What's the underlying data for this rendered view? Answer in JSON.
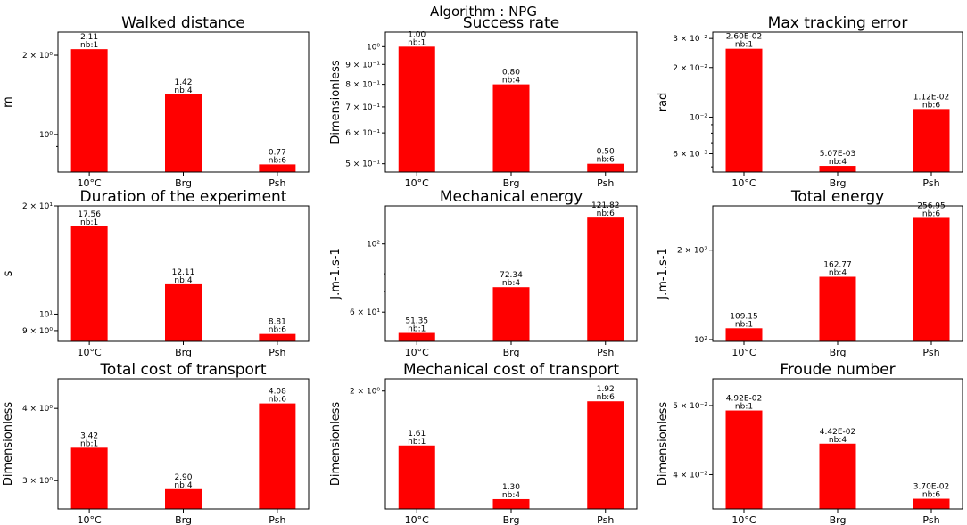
{
  "figure_title": "Algorithm : NPG",
  "colors": {
    "bar": "#ff0000",
    "axis": "#000000",
    "background": "#ffffff"
  },
  "chart_data": [
    {
      "type": "bar",
      "title": "Walked distance",
      "ylabel": "m",
      "yscale": "log",
      "categories": [
        "10°C",
        "Brg",
        "Psh"
      ],
      "values": [
        2.11,
        1.42,
        0.77
      ],
      "value_labels": [
        "2.11",
        "1.42",
        "0.77"
      ],
      "count_labels": [
        "nb:1",
        "nb:4",
        "nb:6"
      ],
      "ylim": [
        0.72,
        2.45
      ],
      "yticks": [
        {
          "value": 2,
          "label": "2 × 10⁰"
        },
        {
          "value": 1,
          "label": "10⁰"
        }
      ],
      "minor_ticks": [
        3,
        0.9,
        0.8,
        0.7
      ]
    },
    {
      "type": "bar",
      "title": "Success rate",
      "ylabel": "Dimensionless",
      "yscale": "log",
      "categories": [
        "10°C",
        "Brg",
        "Psh"
      ],
      "values": [
        1.0,
        0.8,
        0.5
      ],
      "value_labels": [
        "1.00",
        "0.80",
        "0.50"
      ],
      "count_labels": [
        "nb:1",
        "nb:4",
        "nb:6"
      ],
      "ylim": [
        0.476,
        1.09
      ],
      "yticks": [
        {
          "value": 1.0,
          "label": "10⁰"
        },
        {
          "value": 0.9,
          "label": "9 × 10⁻¹"
        },
        {
          "value": 0.8,
          "label": "8 × 10⁻¹"
        },
        {
          "value": 0.7,
          "label": "7 × 10⁻¹"
        },
        {
          "value": 0.6,
          "label": "6 × 10⁻¹"
        },
        {
          "value": 0.5,
          "label": "5 × 10⁻¹"
        }
      ],
      "minor_ticks": []
    },
    {
      "type": "bar",
      "title": "Max tracking error",
      "ylabel": "rad",
      "yscale": "log",
      "categories": [
        "10°C",
        "Brg",
        "Psh"
      ],
      "values": [
        0.026,
        0.00507,
        0.0112
      ],
      "value_labels": [
        "2.60E-02",
        "5.07E-03",
        "1.12E-02"
      ],
      "count_labels": [
        "nb:1",
        "nb:4",
        "nb:6"
      ],
      "ylim": [
        0.00465,
        0.0328
      ],
      "yticks": [
        {
          "value": 0.03,
          "label": "3 × 10⁻²"
        },
        {
          "value": 0.02,
          "label": "2 × 10⁻²"
        },
        {
          "value": 0.01,
          "label": "10⁻²"
        },
        {
          "value": 0.006,
          "label": "6 × 10⁻³"
        }
      ],
      "minor_ticks": [
        0.009,
        0.008,
        0.007,
        0.005
      ]
    },
    {
      "type": "bar",
      "title": "Duration of the experiment",
      "ylabel": "s",
      "yscale": "log",
      "categories": [
        "10°C",
        "Brg",
        "Psh"
      ],
      "values": [
        17.56,
        12.11,
        8.81
      ],
      "value_labels": [
        "17.56",
        "12.11",
        "8.81"
      ],
      "count_labels": [
        "nb:1",
        "nb:4",
        "nb:6"
      ],
      "ylim": [
        8.4,
        20.0
      ],
      "yticks": [
        {
          "value": 20,
          "label": "2 × 10¹"
        },
        {
          "value": 10,
          "label": "10¹"
        },
        {
          "value": 9,
          "label": "9 × 10⁰"
        }
      ],
      "minor_ticks": []
    },
    {
      "type": "bar",
      "title": "Mechanical energy",
      "ylabel": "J.m-1.s-1",
      "yscale": "log",
      "categories": [
        "10°C",
        "Brg",
        "Psh"
      ],
      "values": [
        51.35,
        72.34,
        121.82
      ],
      "value_labels": [
        "51.35",
        "72.34",
        "121.82"
      ],
      "count_labels": [
        "nb:1",
        "nb:4",
        "nb:6"
      ],
      "ylim": [
        48.2,
        133.0
      ],
      "yticks": [
        {
          "value": 100,
          "label": "10²"
        },
        {
          "value": 60,
          "label": "6 × 10¹"
        }
      ],
      "minor_ticks": [
        90,
        80,
        70
      ]
    },
    {
      "type": "bar",
      "title": "Total energy",
      "ylabel": "J.m-1.s-1",
      "yscale": "log",
      "categories": [
        "10°C",
        "Brg",
        "Psh"
      ],
      "values": [
        109.15,
        162.77,
        256.95
      ],
      "value_labels": [
        "109.15",
        "162.77",
        "256.95"
      ],
      "count_labels": [
        "nb:1",
        "nb:4",
        "nb:6"
      ],
      "ylim": [
        98.6,
        282.0
      ],
      "yticks": [
        {
          "value": 200,
          "label": "2 × 10²"
        },
        {
          "value": 100,
          "label": "10²"
        }
      ],
      "minor_ticks": []
    },
    {
      "type": "bar",
      "title": "Total cost of transport",
      "ylabel": "Dimensionless",
      "yscale": "log",
      "categories": [
        "10°C",
        "Brg",
        "Psh"
      ],
      "values": [
        3.42,
        2.9,
        4.08
      ],
      "value_labels": [
        "3.42",
        "2.90",
        "4.08"
      ],
      "count_labels": [
        "nb:1",
        "nb:4",
        "nb:6"
      ],
      "ylim": [
        2.68,
        4.5
      ],
      "yticks": [
        {
          "value": 4,
          "label": "4 × 10⁰"
        },
        {
          "value": 3,
          "label": "3 × 10⁰"
        }
      ],
      "minor_ticks": []
    },
    {
      "type": "bar",
      "title": "Mechanical cost of transport",
      "ylabel": "Dimensionless",
      "yscale": "log",
      "categories": [
        "10°C",
        "Brg",
        "Psh"
      ],
      "values": [
        1.61,
        1.3,
        1.92
      ],
      "value_labels": [
        "1.61",
        "1.30",
        "1.92"
      ],
      "count_labels": [
        "nb:1",
        "nb:4",
        "nb:6"
      ],
      "ylim": [
        1.25,
        2.1
      ],
      "yticks": [
        {
          "value": 2,
          "label": "2 × 10⁰"
        }
      ],
      "minor_ticks": []
    },
    {
      "type": "bar",
      "title": "Froude number",
      "ylabel": "Dimensionless",
      "yscale": "log",
      "categories": [
        "10°C",
        "Brg",
        "Psh"
      ],
      "values": [
        0.0492,
        0.0442,
        0.037
      ],
      "value_labels": [
        "4.92E-02",
        "4.42E-02",
        "3.70E-02"
      ],
      "count_labels": [
        "nb:1",
        "nb:4",
        "nb:6"
      ],
      "ylim": [
        0.0358,
        0.0545
      ],
      "yticks": [
        {
          "value": 0.05,
          "label": "5 × 10⁻²"
        },
        {
          "value": 0.04,
          "label": "4 × 10⁻²"
        }
      ],
      "minor_ticks": []
    }
  ]
}
